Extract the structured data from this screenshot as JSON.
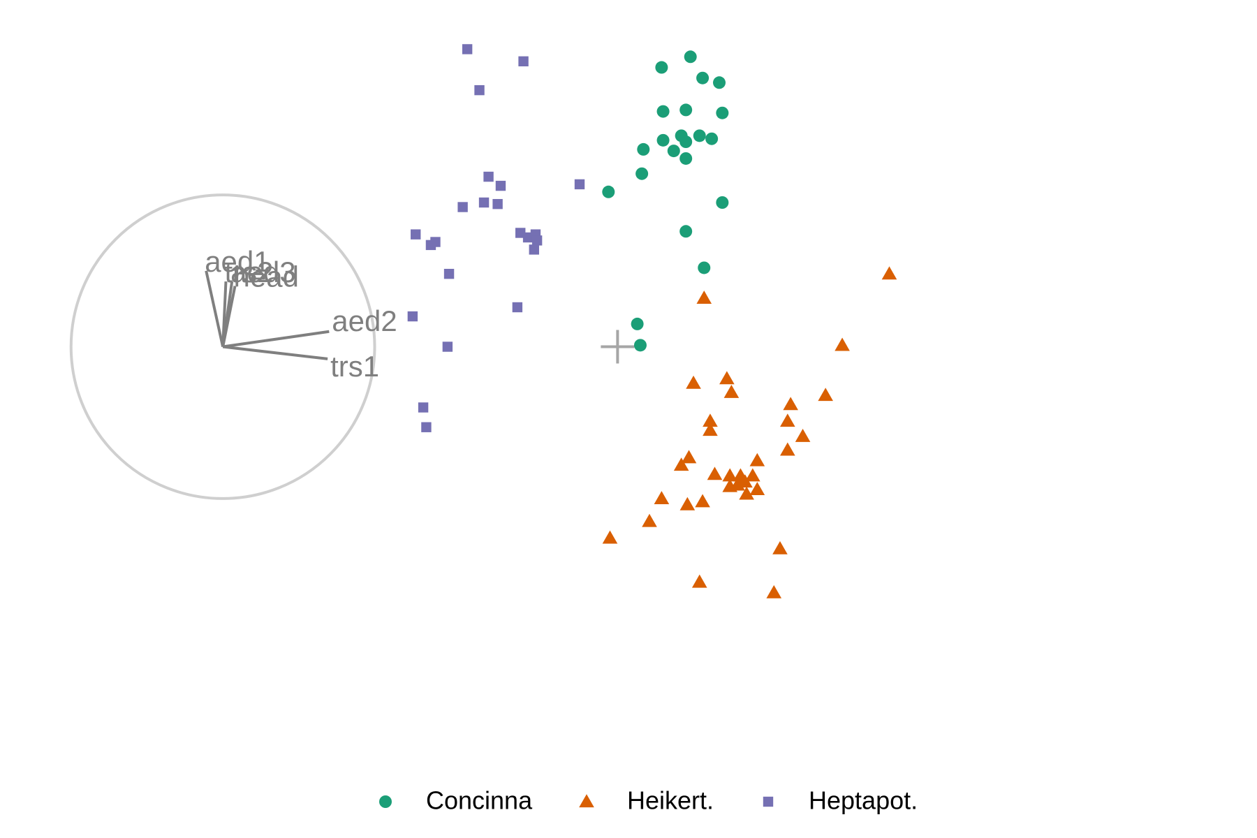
{
  "chart_data": {
    "type": "scatter",
    "title": "",
    "xlabel": "",
    "ylabel": "",
    "grid": false,
    "legend_position": "bottom",
    "xlim": [
      -3.7,
      2.1
    ],
    "ylim": [
      -2.5,
      2.1
    ],
    "origin_marker": [
      0,
      0
    ],
    "axis_circle": {
      "center": [
        -2.6,
        0
      ],
      "radius": 1.0
    },
    "loadings": [
      {
        "name": "trs1",
        "x": 0.69,
        "y": -0.08
      },
      {
        "name": "aed2",
        "x": 0.7,
        "y": 0.1
      },
      {
        "name": "aed3",
        "x": 0.06,
        "y": 0.43
      },
      {
        "name": "aed1",
        "x": -0.11,
        "y": 0.5
      },
      {
        "name": "trs2",
        "x": 0.02,
        "y": 0.43
      },
      {
        "name": "head",
        "x": 0.08,
        "y": 0.4
      }
    ],
    "series": [
      {
        "name": "Concinna",
        "color": "#1b9e77",
        "marker": "circle",
        "points": [
          [
            0.29,
            1.84
          ],
          [
            0.48,
            1.91
          ],
          [
            0.56,
            1.77
          ],
          [
            0.67,
            1.74
          ],
          [
            0.3,
            1.55
          ],
          [
            0.45,
            1.56
          ],
          [
            0.69,
            1.54
          ],
          [
            0.3,
            1.36
          ],
          [
            0.42,
            1.39
          ],
          [
            0.45,
            1.35
          ],
          [
            0.54,
            1.39
          ],
          [
            0.62,
            1.37
          ],
          [
            0.17,
            1.3
          ],
          [
            0.37,
            1.29
          ],
          [
            0.45,
            1.24
          ],
          [
            0.16,
            1.14
          ],
          [
            -0.06,
            1.02
          ],
          [
            0.69,
            0.95
          ],
          [
            0.45,
            0.76
          ],
          [
            0.57,
            0.52
          ],
          [
            0.13,
            0.15
          ],
          [
            0.15,
            0.01
          ]
        ]
      },
      {
        "name": "Heikert.",
        "color": "#d95f02",
        "marker": "triangle",
        "points": [
          [
            1.79,
            0.48
          ],
          [
            0.57,
            0.32
          ],
          [
            1.48,
            0.01
          ],
          [
            0.5,
            -0.24
          ],
          [
            0.72,
            -0.21
          ],
          [
            0.75,
            -0.3
          ],
          [
            1.37,
            -0.32
          ],
          [
            1.14,
            -0.38
          ],
          [
            0.61,
            -0.49
          ],
          [
            0.61,
            -0.55
          ],
          [
            1.12,
            -0.49
          ],
          [
            1.22,
            -0.59
          ],
          [
            1.12,
            -0.68
          ],
          [
            0.92,
            -0.75
          ],
          [
            0.42,
            -0.78
          ],
          [
            0.47,
            -0.73
          ],
          [
            0.64,
            -0.84
          ],
          [
            0.74,
            -0.85
          ],
          [
            0.81,
            -0.85
          ],
          [
            0.84,
            -0.89
          ],
          [
            0.89,
            -0.85
          ],
          [
            0.74,
            -0.92
          ],
          [
            0.82,
            -0.87
          ],
          [
            0.79,
            -0.91
          ],
          [
            0.85,
            -0.97
          ],
          [
            0.92,
            -0.94
          ],
          [
            0.29,
            -1.0
          ],
          [
            0.46,
            -1.04
          ],
          [
            0.56,
            -1.02
          ],
          [
            0.21,
            -1.15
          ],
          [
            -0.05,
            -1.26
          ],
          [
            1.07,
            -1.33
          ],
          [
            0.54,
            -1.55
          ],
          [
            1.03,
            -1.62
          ]
        ]
      },
      {
        "name": "Heptapot.",
        "color": "#7570b3",
        "marker": "square",
        "points": [
          [
            -0.99,
            1.96
          ],
          [
            -0.62,
            1.88
          ],
          [
            -0.91,
            1.69
          ],
          [
            -0.85,
            1.12
          ],
          [
            -0.77,
            1.06
          ],
          [
            -0.25,
            1.07
          ],
          [
            -0.79,
            0.94
          ],
          [
            -0.88,
            0.95
          ],
          [
            -1.02,
            0.92
          ],
          [
            -1.33,
            0.74
          ],
          [
            -1.2,
            0.69
          ],
          [
            -1.23,
            0.67
          ],
          [
            -0.64,
            0.75
          ],
          [
            -0.59,
            0.72
          ],
          [
            -0.54,
            0.74
          ],
          [
            -0.53,
            0.7
          ],
          [
            -0.55,
            0.64
          ],
          [
            -1.11,
            0.48
          ],
          [
            -0.66,
            0.26
          ],
          [
            -1.35,
            0.2
          ],
          [
            -1.12,
            0.0
          ],
          [
            -1.28,
            -0.4
          ],
          [
            -1.26,
            -0.53
          ]
        ]
      }
    ]
  }
}
